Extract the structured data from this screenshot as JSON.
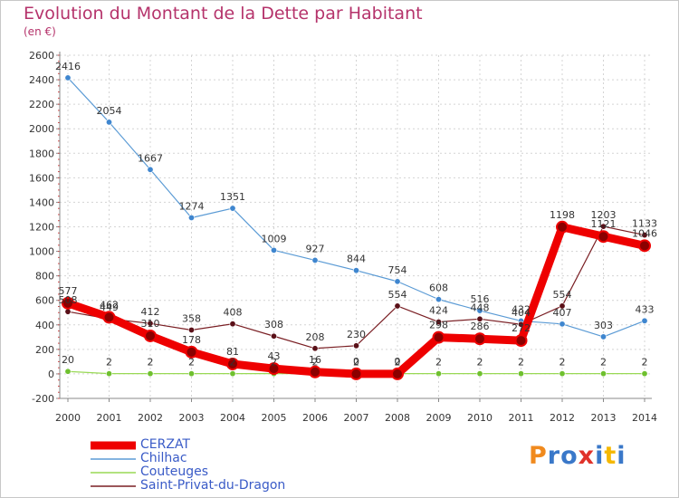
{
  "title": "Evolution du Montant de la Dette par Habitant",
  "unit": "(en €)",
  "logo": "Proxiti",
  "chart_data": {
    "type": "line",
    "x": [
      "2000",
      "2001",
      "2002",
      "2003",
      "2004",
      "2005",
      "2006",
      "2007",
      "2008",
      "2009",
      "2010",
      "2011",
      "2012",
      "2013",
      "2014"
    ],
    "ylim": [
      -200,
      2600
    ],
    "yticks": [
      -200,
      0,
      200,
      400,
      600,
      800,
      1000,
      1200,
      1400,
      1600,
      1800,
      2000,
      2200,
      2400,
      2600
    ],
    "grid": true,
    "legend": "bottom-left",
    "series": [
      {
        "name": "CERZAT",
        "color": "#ee0000",
        "values": [
          577,
          462,
          310,
          178,
          81,
          43,
          16,
          0,
          0,
          298,
          286,
          272,
          1198,
          1121,
          1046
        ]
      },
      {
        "name": "Chilhac",
        "color": "#5b9bd5",
        "values": [
          2416,
          2054,
          1667,
          1274,
          1351,
          1009,
          927,
          844,
          754,
          608,
          516,
          432,
          407,
          303,
          433
        ]
      },
      {
        "name": "Couteuges",
        "color": "#99d955",
        "values": [
          20,
          2,
          2,
          2,
          2,
          2,
          2,
          2,
          2,
          2,
          2,
          2,
          2,
          2,
          2
        ]
      },
      {
        "name": "Saint-Privat-du-Dragon",
        "color": "#7a1f24",
        "values": [
          508,
          449,
          412,
          358,
          408,
          308,
          208,
          230,
          554,
          424,
          448,
          404,
          554,
          1203,
          1133
        ]
      }
    ]
  }
}
